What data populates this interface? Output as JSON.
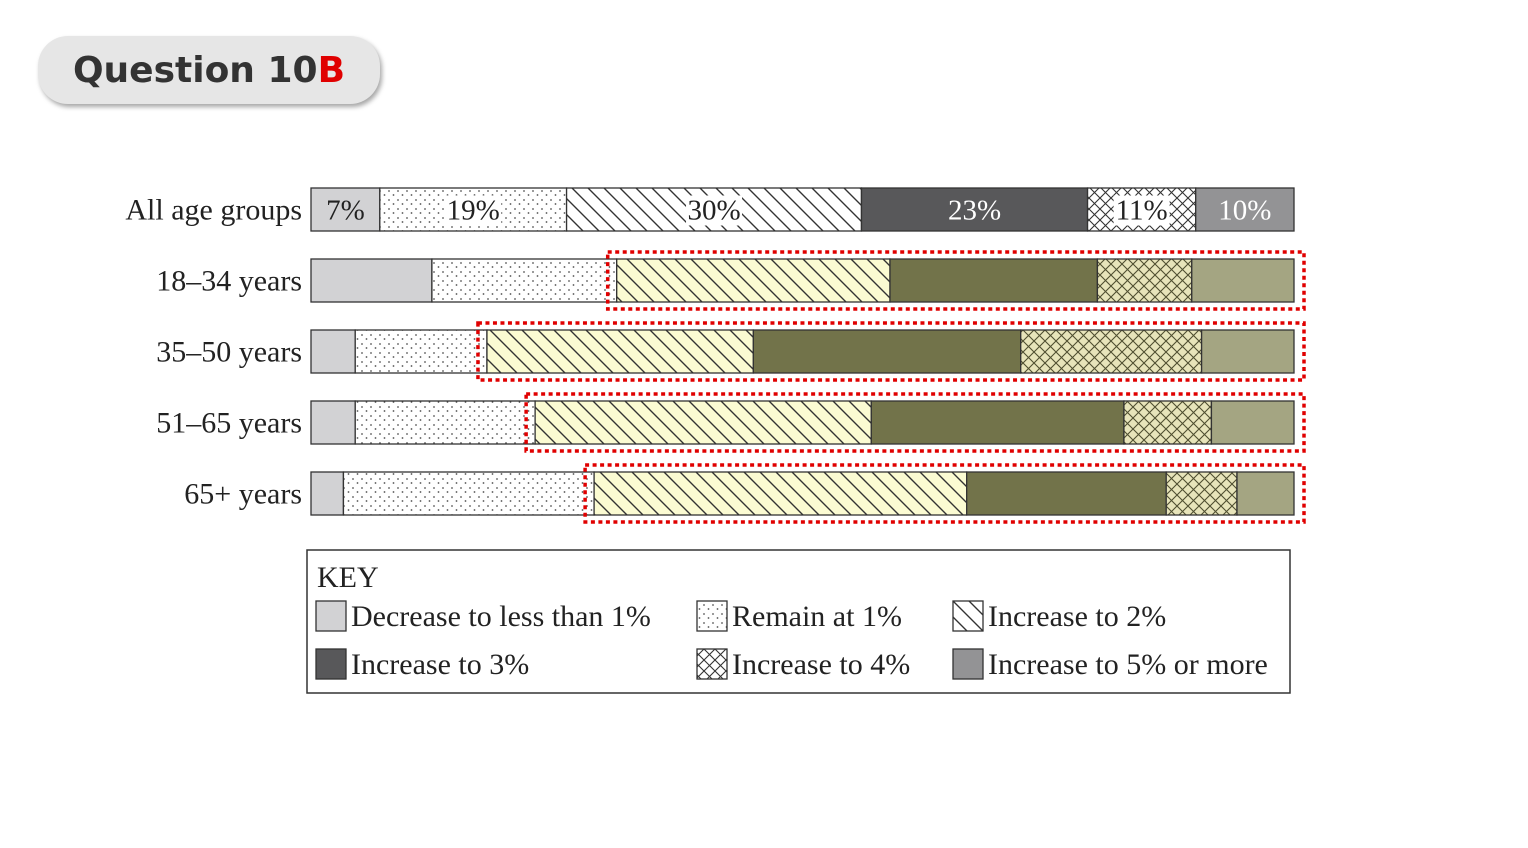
{
  "header": {
    "title_main": "Question 10",
    "title_accent": "B",
    "accent_color": "#e00000"
  },
  "chart_data": {
    "type": "bar",
    "orientation": "horizontal-stacked-100",
    "categories": [
      "All age groups",
      "18–34 years",
      "35–50 years",
      "51–65 years",
      "65+ years"
    ],
    "series": [
      {
        "name": "Decrease to less than 1%",
        "values": [
          7,
          12.3,
          4.5,
          4.5,
          3.3
        ]
      },
      {
        "name": "Remain at 1%",
        "values": [
          19,
          18.8,
          13.4,
          18.3,
          25.5
        ]
      },
      {
        "name": "Increase to 2%",
        "values": [
          30,
          27.8,
          27.1,
          34.2,
          37.9
        ]
      },
      {
        "name": "Increase to 3%",
        "values": [
          23,
          21.1,
          27.2,
          25.7,
          20.3
        ]
      },
      {
        "name": "Increase to 4%",
        "values": [
          11,
          9.6,
          18.4,
          8.9,
          7.2
        ]
      },
      {
        "name": "Increase to 5% or more",
        "values": [
          10,
          10.4,
          9.4,
          8.4,
          5.8
        ]
      }
    ],
    "data_labels": [
      [
        "7%",
        "19%",
        "30%",
        "23%",
        "11%",
        "10%"
      ]
    ],
    "highlight_color": "#e00000",
    "highlighted_rows": [
      1,
      2,
      3,
      4
    ],
    "highlight_from_series": 2,
    "key_title": "KEY",
    "legend_placement": "bottom"
  }
}
